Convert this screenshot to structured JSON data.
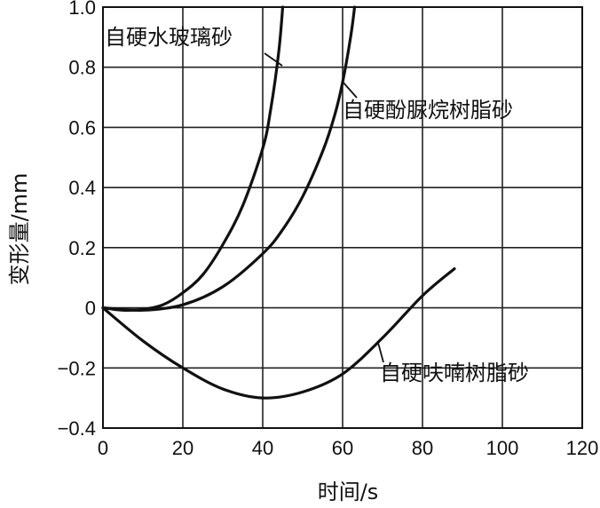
{
  "chart_data": {
    "type": "line",
    "xlabel": "时间/s",
    "ylabel": "变形量/mm",
    "xlim": [
      0,
      120
    ],
    "ylim": [
      -0.4,
      1.0
    ],
    "x_ticks": [
      "0",
      "20",
      "40",
      "60",
      "80",
      "100",
      "120"
    ],
    "y_ticks": [
      "−0.4",
      "−0.2",
      "0",
      "0.2",
      "0.4",
      "0.6",
      "0.8",
      "1.0"
    ],
    "grid": true,
    "series": [
      {
        "name": "自硬水玻璃砂",
        "x": [
          0,
          5,
          10,
          15,
          20,
          25,
          30,
          35,
          40,
          42,
          44,
          45
        ],
        "y": [
          0,
          -0.008,
          -0.005,
          0.01,
          0.05,
          0.11,
          0.21,
          0.34,
          0.53,
          0.66,
          0.85,
          1.0
        ]
      },
      {
        "name": "自硬酚脲烷树脂砂",
        "x": [
          0,
          10,
          20,
          30,
          40,
          45,
          50,
          55,
          58,
          60,
          62,
          63
        ],
        "y": [
          0,
          -0.008,
          0.01,
          0.07,
          0.18,
          0.26,
          0.37,
          0.52,
          0.64,
          0.75,
          0.9,
          1.0
        ]
      },
      {
        "name": "自硬呋喃树脂砂",
        "x": [
          0,
          10,
          20,
          30,
          40,
          50,
          60,
          70,
          80,
          88
        ],
        "y": [
          0,
          -0.11,
          -0.2,
          -0.27,
          -0.3,
          -0.28,
          -0.22,
          -0.1,
          0.04,
          0.13
        ]
      }
    ],
    "annotations": [
      {
        "text": "自硬水玻璃砂",
        "series": "自硬水玻璃砂"
      },
      {
        "text": "自硬酚脲烷树脂砂",
        "series": "自硬酚脲烷树脂砂"
      },
      {
        "text": "自硬呋喃树脂砂",
        "series": "自硬呋喃树脂砂"
      }
    ]
  }
}
